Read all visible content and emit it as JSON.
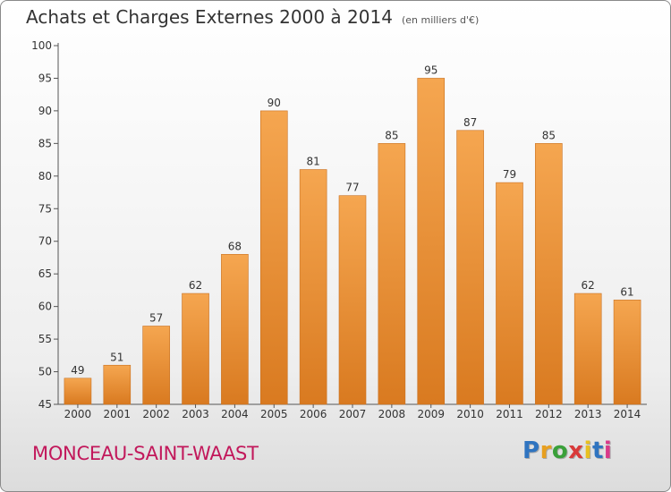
{
  "title": "Achats et Charges Externes 2000 à 2014",
  "unit": "(en milliers d'€)",
  "commune": "MONCEAU-SAINT-WAAST",
  "logo": {
    "text": "Proxiti",
    "colors": [
      "#2f74c0",
      "#e8a020",
      "#3aa03a",
      "#d93a3a",
      "#e8c020",
      "#2f74c0",
      "#d93a8a"
    ]
  },
  "colors": {
    "bar_top": "#f5a650",
    "bar_bottom": "#d97a20",
    "axis": "#555555",
    "grid": "#cfcfcf",
    "commune": "#c2185b"
  },
  "chart_data": {
    "type": "bar",
    "categories": [
      "2000",
      "2001",
      "2002",
      "2003",
      "2004",
      "2005",
      "2006",
      "2007",
      "2008",
      "2009",
      "2010",
      "2011",
      "2012",
      "2013",
      "2014"
    ],
    "values": [
      49,
      51,
      57,
      62,
      68,
      90,
      81,
      77,
      85,
      95,
      87,
      79,
      85,
      62,
      61
    ],
    "ylim": [
      45,
      100
    ],
    "yticks": [
      45,
      50,
      55,
      60,
      65,
      70,
      75,
      80,
      85,
      90,
      95,
      100
    ],
    "grid": false,
    "legend": "none",
    "data_labels": true
  }
}
